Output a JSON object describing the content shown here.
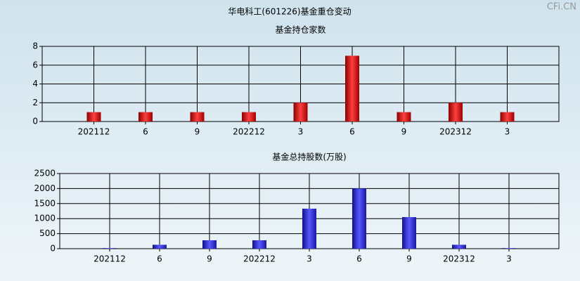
{
  "title": "华电科工(601226)基金重仓变动",
  "watermark": "CFi.CN",
  "chart_data": [
    {
      "type": "bar",
      "title": "基金持仓家数",
      "categories": [
        "202112",
        "6",
        "9",
        "202212",
        "3",
        "6",
        "9",
        "202312",
        "3"
      ],
      "values": [
        1,
        1,
        1,
        1,
        2,
        7,
        1,
        2,
        1
      ],
      "color": "red",
      "ylim": [
        0,
        8
      ],
      "yticks": [
        0,
        2,
        4,
        6,
        8
      ],
      "grid": true
    },
    {
      "type": "bar",
      "title": "基金总持股数(万股)",
      "categories": [
        "202112",
        "6",
        "9",
        "202212",
        "3",
        "6",
        "9",
        "202312",
        "3"
      ],
      "values": [
        20,
        130,
        280,
        280,
        1330,
        2000,
        1050,
        130,
        20
      ],
      "color": "blue",
      "ylim": [
        0,
        2500
      ],
      "yticks": [
        0,
        500,
        1000,
        1500,
        2000,
        2500
      ],
      "grid": true
    }
  ]
}
